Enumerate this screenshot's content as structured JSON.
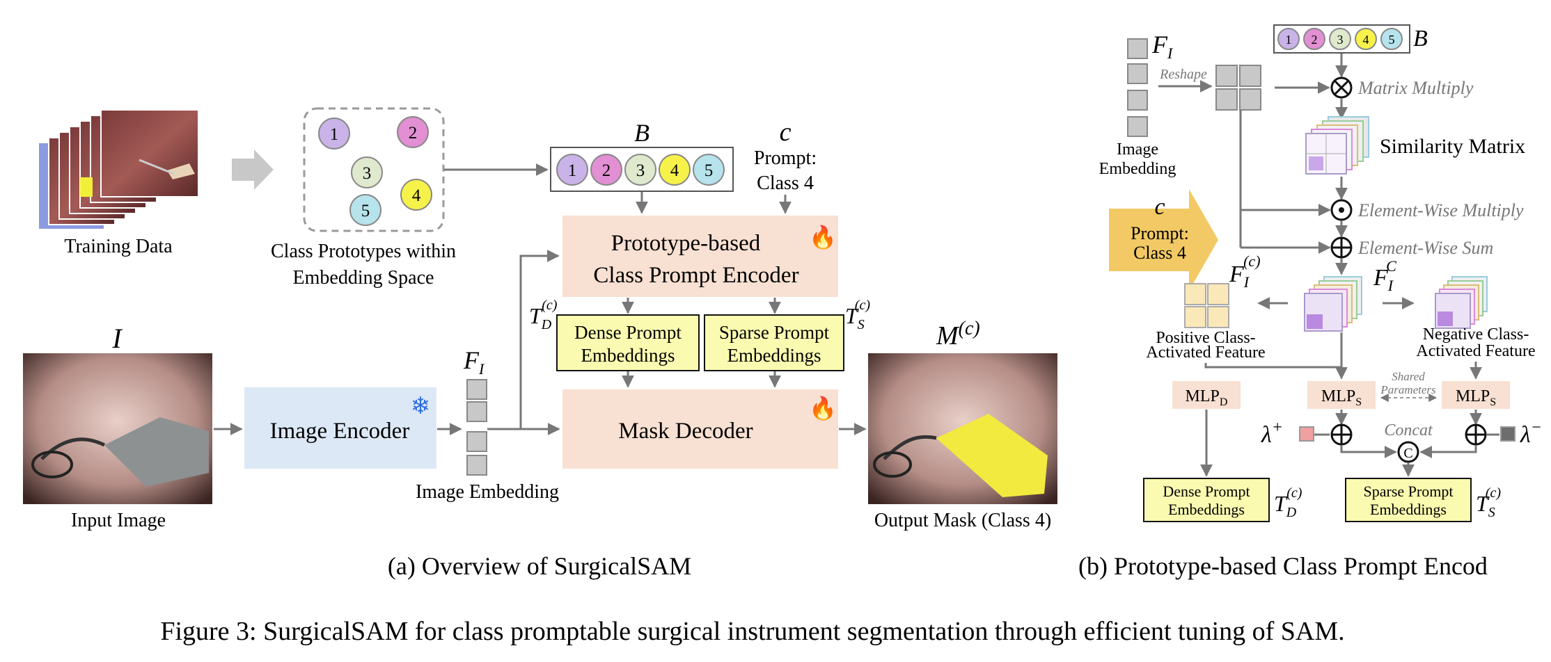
{
  "colors": {
    "prompt_encoder_fill": "#f8e0d2",
    "image_encoder_fill": "#dce8f5",
    "embedding_box_fill": "#fafbb0",
    "mlp_fill": "#f8e0d2",
    "arrow_gray": "#777777",
    "c1": "#c9b3e8",
    "c2": "#e28fd3",
    "c3": "#dfe9cd",
    "c4": "#f7f24a",
    "c5": "#b6e3ec",
    "c_badge": "#f2c964",
    "lambda_plus": "#f0a0a0",
    "lambda_minus": "#6d6d6d"
  },
  "panel_a": {
    "training_data_label": "Training Data",
    "prototypes_label_line1": "Class Prototypes within",
    "prototypes_label_line2": "Embedding Space",
    "prototype_numbers": [
      "1",
      "2",
      "3",
      "4",
      "5"
    ],
    "bank_symbol": "B",
    "c_symbol": "c",
    "prompt_line1": "Prompt:",
    "prompt_line2": "Class 4",
    "prompt_encoder_line1": "Prototype-based",
    "prompt_encoder_line2": "Class Prompt Encoder",
    "td_symbol": "T",
    "td_sub": "D",
    "ts_sub": "S",
    "c_sup": "(c)",
    "dense_line1": "Dense Prompt",
    "dense_line2": "Embeddings",
    "sparse_line1": "Sparse Prompt",
    "sparse_line2": "Embeddings",
    "input_symbol": "I",
    "input_label": "Input Image",
    "image_encoder_label": "Image Encoder",
    "fi_symbol": "F",
    "fi_sub": "I",
    "image_embedding_label": "Image Embedding",
    "mask_decoder_label": "Mask Decoder",
    "mask_symbol": "M",
    "output_label": "Output Mask (Class 4)",
    "fire_icon": "🔥",
    "snowflake_icon": "❄"
  },
  "panel_b": {
    "fi_symbol": "F",
    "fi_sub": "I",
    "reshape_label": "Reshape",
    "image_embedding_line1": "Image",
    "image_embedding_line2": "Embedding",
    "bank_numbers": [
      "1",
      "2",
      "3",
      "4",
      "5"
    ],
    "bank_symbol": "B",
    "matrix_multiply_label": "Matrix Multiply",
    "similarity_label": "Similarity Matrix",
    "element_multiply_label": "Element-Wise Multiply",
    "element_sum_label": "Element-Wise Sum",
    "c_symbol": "c",
    "prompt_line1": "Prompt:",
    "prompt_line2": "Class 4",
    "fic_sup": "C",
    "c_sup": "(c)",
    "positive_line1": "Positive Class-",
    "positive_line2": "Activated Feature",
    "negative_line1": "Negative Class-",
    "negative_line2": "Activated Feature",
    "mlp_label": "MLP",
    "mlp_d_sub": "D",
    "mlp_s_sub": "S",
    "shared_line1": "Shared",
    "shared_line2": "Parameters",
    "concat_label": "Concat",
    "concat_symbol": "C",
    "lambda_symbol": "λ",
    "lambda_plus_sup": "+",
    "lambda_minus_sup": "−",
    "dense_line1": "Dense Prompt",
    "dense_line2": "Embeddings",
    "sparse_line1": "Sparse Prompt",
    "sparse_line2": "Embeddings",
    "td_symbol": "T",
    "td_sub": "D",
    "ts_sub": "S"
  },
  "captions": {
    "panel_a": "(a) Overview of SurgicalSAM",
    "panel_b": "(b) Prototype-based Class Prompt Encod",
    "figure": "Figure 3: SurgicalSAM for class promptable surgical instrument segmentation through efficient tuning of SAM."
  }
}
